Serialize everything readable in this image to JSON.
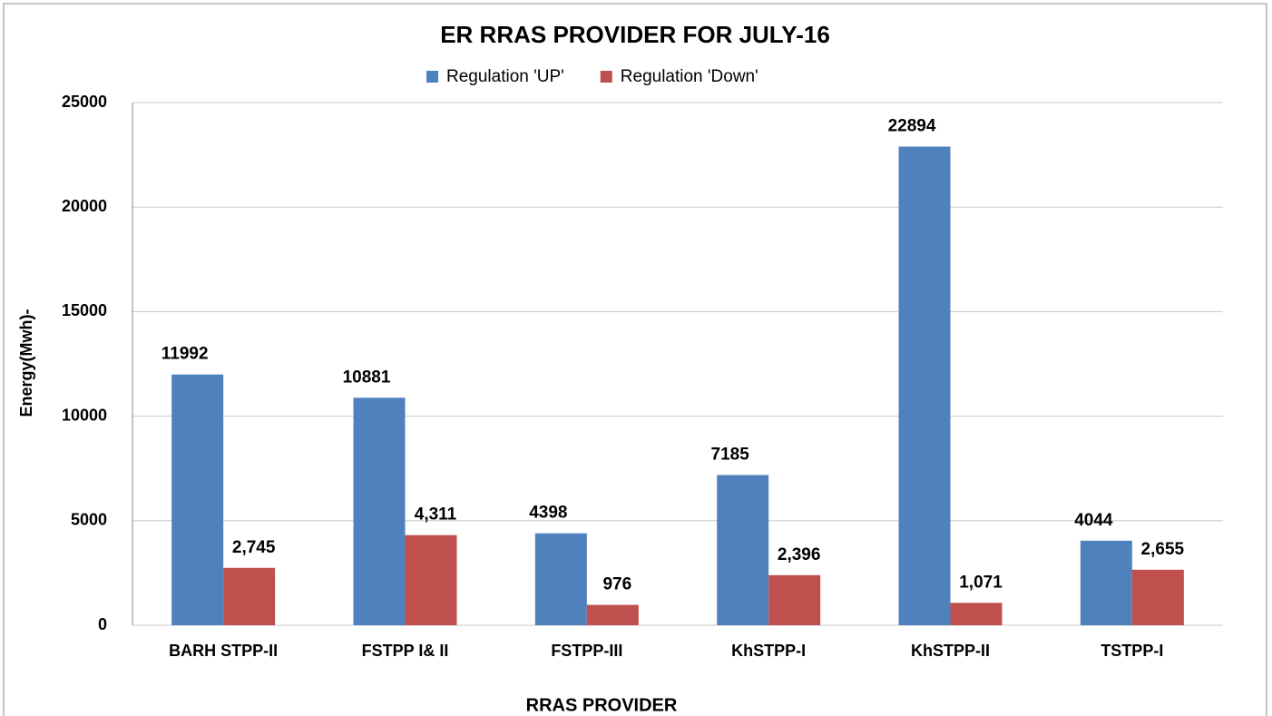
{
  "chart_data": {
    "type": "bar",
    "title": "ER RRAS PROVIDER FOR JULY-16",
    "x_label": "RRAS PROVIDER",
    "y_label": "Energy(Mwh)-",
    "categories": [
      "BARH STPP-II",
      "FSTPP I& II",
      "FSTPP-III",
      "KhSTPP-I",
      "KhSTPP-II",
      "TSTPP-I"
    ],
    "series": [
      {
        "name": "Regulation 'UP'",
        "color": "#4f81bd",
        "values": [
          11992,
          10881,
          4398,
          7185,
          22894,
          4044
        ]
      },
      {
        "name": "Regulation 'Down'",
        "color": "#c0504d",
        "values": [
          2745,
          4311,
          976,
          2396,
          1071,
          2655
        ],
        "value_labels": [
          "2,745",
          "4,311",
          "976",
          "2,396",
          "1,071",
          "2,655"
        ]
      }
    ],
    "ylim": [
      0,
      25000
    ],
    "yticks": [
      0,
      5000,
      10000,
      15000,
      20000,
      25000
    ],
    "grid": true,
    "legend": "top"
  }
}
